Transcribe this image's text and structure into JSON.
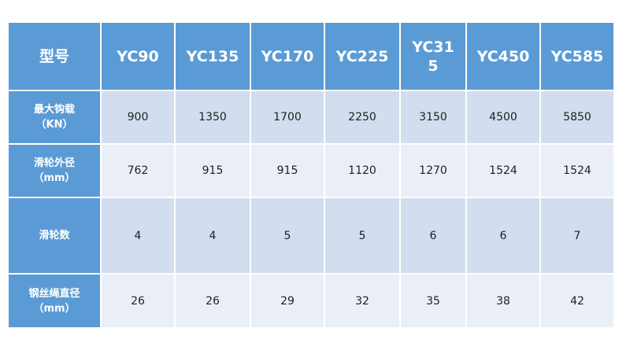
{
  "header": {
    "label": "型号",
    "models": [
      "YC90",
      "YC135",
      "YC170",
      "YC225",
      "YC315",
      "YC450",
      "YC585"
    ]
  },
  "rows": [
    {
      "label": "最大钩载",
      "unit": "（KN）",
      "values": [
        "900",
        "1350",
        "1700",
        "2250",
        "3150",
        "4500",
        "5850"
      ]
    },
    {
      "label": "滑轮外径",
      "unit": "（mm）",
      "values": [
        "762",
        "915",
        "915",
        "1120",
        "1270",
        "1524",
        "1524"
      ]
    },
    {
      "label": "滑轮数",
      "unit": "",
      "values": [
        "4",
        "4",
        "5",
        "5",
        "6",
        "6",
        "7"
      ]
    },
    {
      "label": "钢丝绳直径",
      "unit": "（mm）",
      "values": [
        "26",
        "26",
        "29",
        "32",
        "35",
        "38",
        "42"
      ]
    }
  ]
}
